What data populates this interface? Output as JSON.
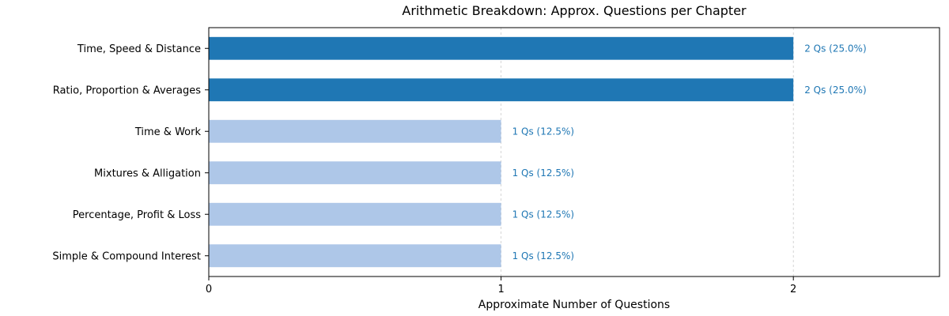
{
  "chart_data": {
    "type": "bar",
    "orientation": "horizontal",
    "title": "Arithmetic Breakdown: Approx. Questions per Chapter",
    "xlabel": "Approximate Number of Questions",
    "ylabel": "",
    "xlim": [
      0,
      2.5
    ],
    "xticks": [
      0,
      1,
      2
    ],
    "xtick_labels": [
      "0",
      "1",
      "2"
    ],
    "grid": "x-dashed",
    "categories": [
      "Time, Speed & Distance",
      "Ratio, Proportion & Averages",
      "Time & Work",
      "Mixtures & Alligation",
      "Percentage, Profit & Loss",
      "Simple & Compound Interest"
    ],
    "values": [
      2,
      2,
      1,
      1,
      1,
      1
    ],
    "data_labels": [
      "2 Qs (25.0%)",
      "2 Qs (25.0%)",
      "1 Qs (12.5%)",
      "1 Qs (12.5%)",
      "1 Qs (12.5%)",
      "1 Qs (12.5%)"
    ],
    "bar_colors": [
      "#1f77b4",
      "#1f77b4",
      "#aec7e8",
      "#aec7e8",
      "#aec7e8",
      "#aec7e8"
    ],
    "label_color": "#1f77b4"
  }
}
